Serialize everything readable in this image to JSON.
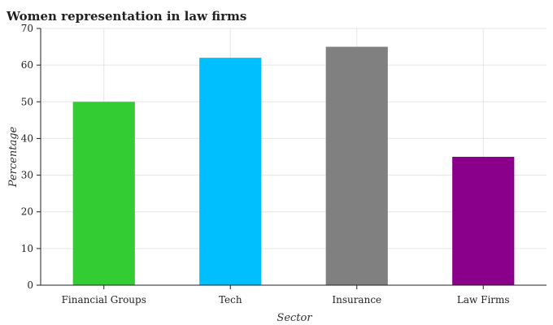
{
  "chart_data": {
    "type": "bar",
    "title": "Women representation in law firms",
    "xlabel": "Sector",
    "ylabel": "Percentage",
    "categories": [
      "Financial Groups",
      "Tech",
      "Insurance",
      "Law Firms"
    ],
    "values": [
      50,
      62,
      65,
      35
    ],
    "colors": [
      "#33cc33",
      "#00bfff",
      "#808080",
      "#8b008b"
    ],
    "ylim": [
      0,
      70
    ],
    "yticks": [
      0,
      10,
      20,
      30,
      40,
      50,
      60,
      70
    ],
    "grid": true,
    "legend": "none"
  }
}
